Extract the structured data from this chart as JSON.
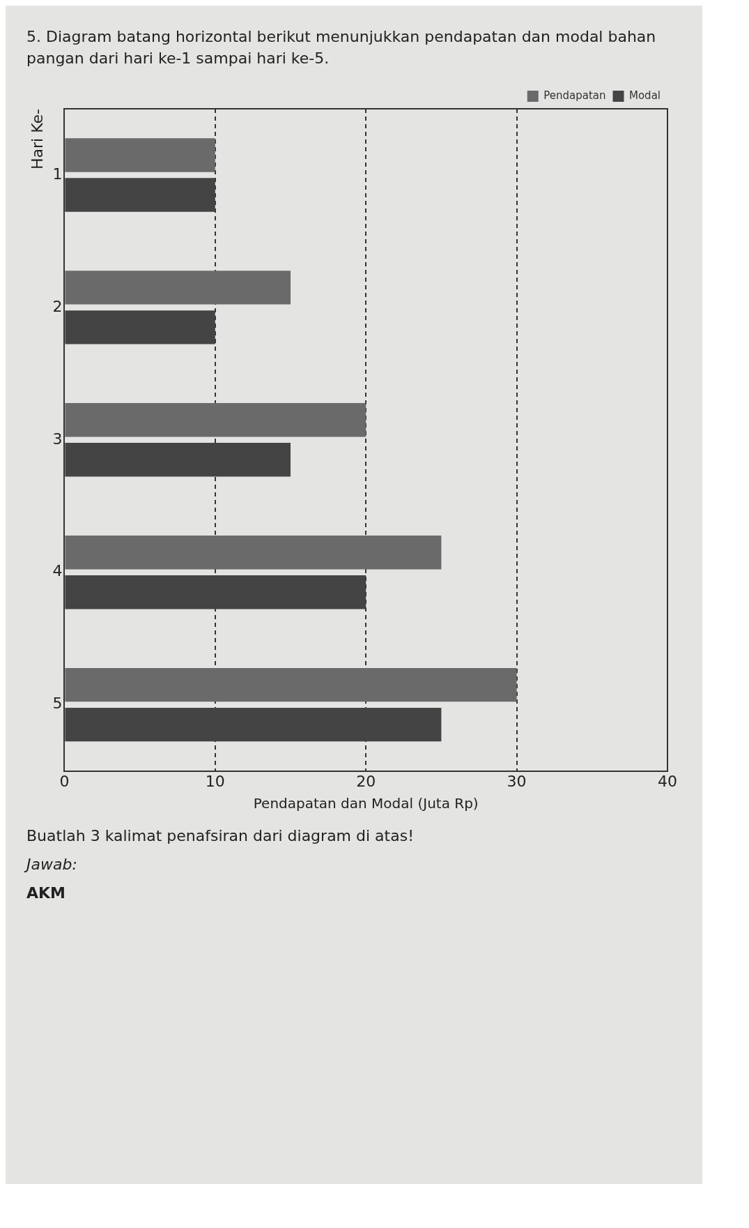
{
  "chart_data": {
    "type": "bar",
    "orientation": "horizontal",
    "title": "5. Diagram batang horizontal berikut menunjukkan pendapatan dan modal bahan pangan dari hari ke-1 sampai hari ke-5.",
    "ylabel": "Hari Ke-",
    "xlabel": "Pendapatan dan Modal (Juta Rp)",
    "categories": [
      "1",
      "2",
      "3",
      "4",
      "5"
    ],
    "series": [
      {
        "name": "Pendapatan",
        "color": "#6a6a6a",
        "values": [
          10,
          15,
          20,
          25,
          30
        ]
      },
      {
        "name": "Modal",
        "color": "#444444",
        "values": [
          10,
          10,
          15,
          20,
          25
        ]
      }
    ],
    "xlim": [
      0,
      40
    ],
    "xticks": [
      0,
      10,
      20,
      30,
      40
    ],
    "grid": "x",
    "line_style": "dashed",
    "legend": "top right",
    "annotations": [
      "Buatlah 3 kalimat penafsiran dari diagram di atas!",
      "Jawab:",
      "AKM"
    ]
  }
}
